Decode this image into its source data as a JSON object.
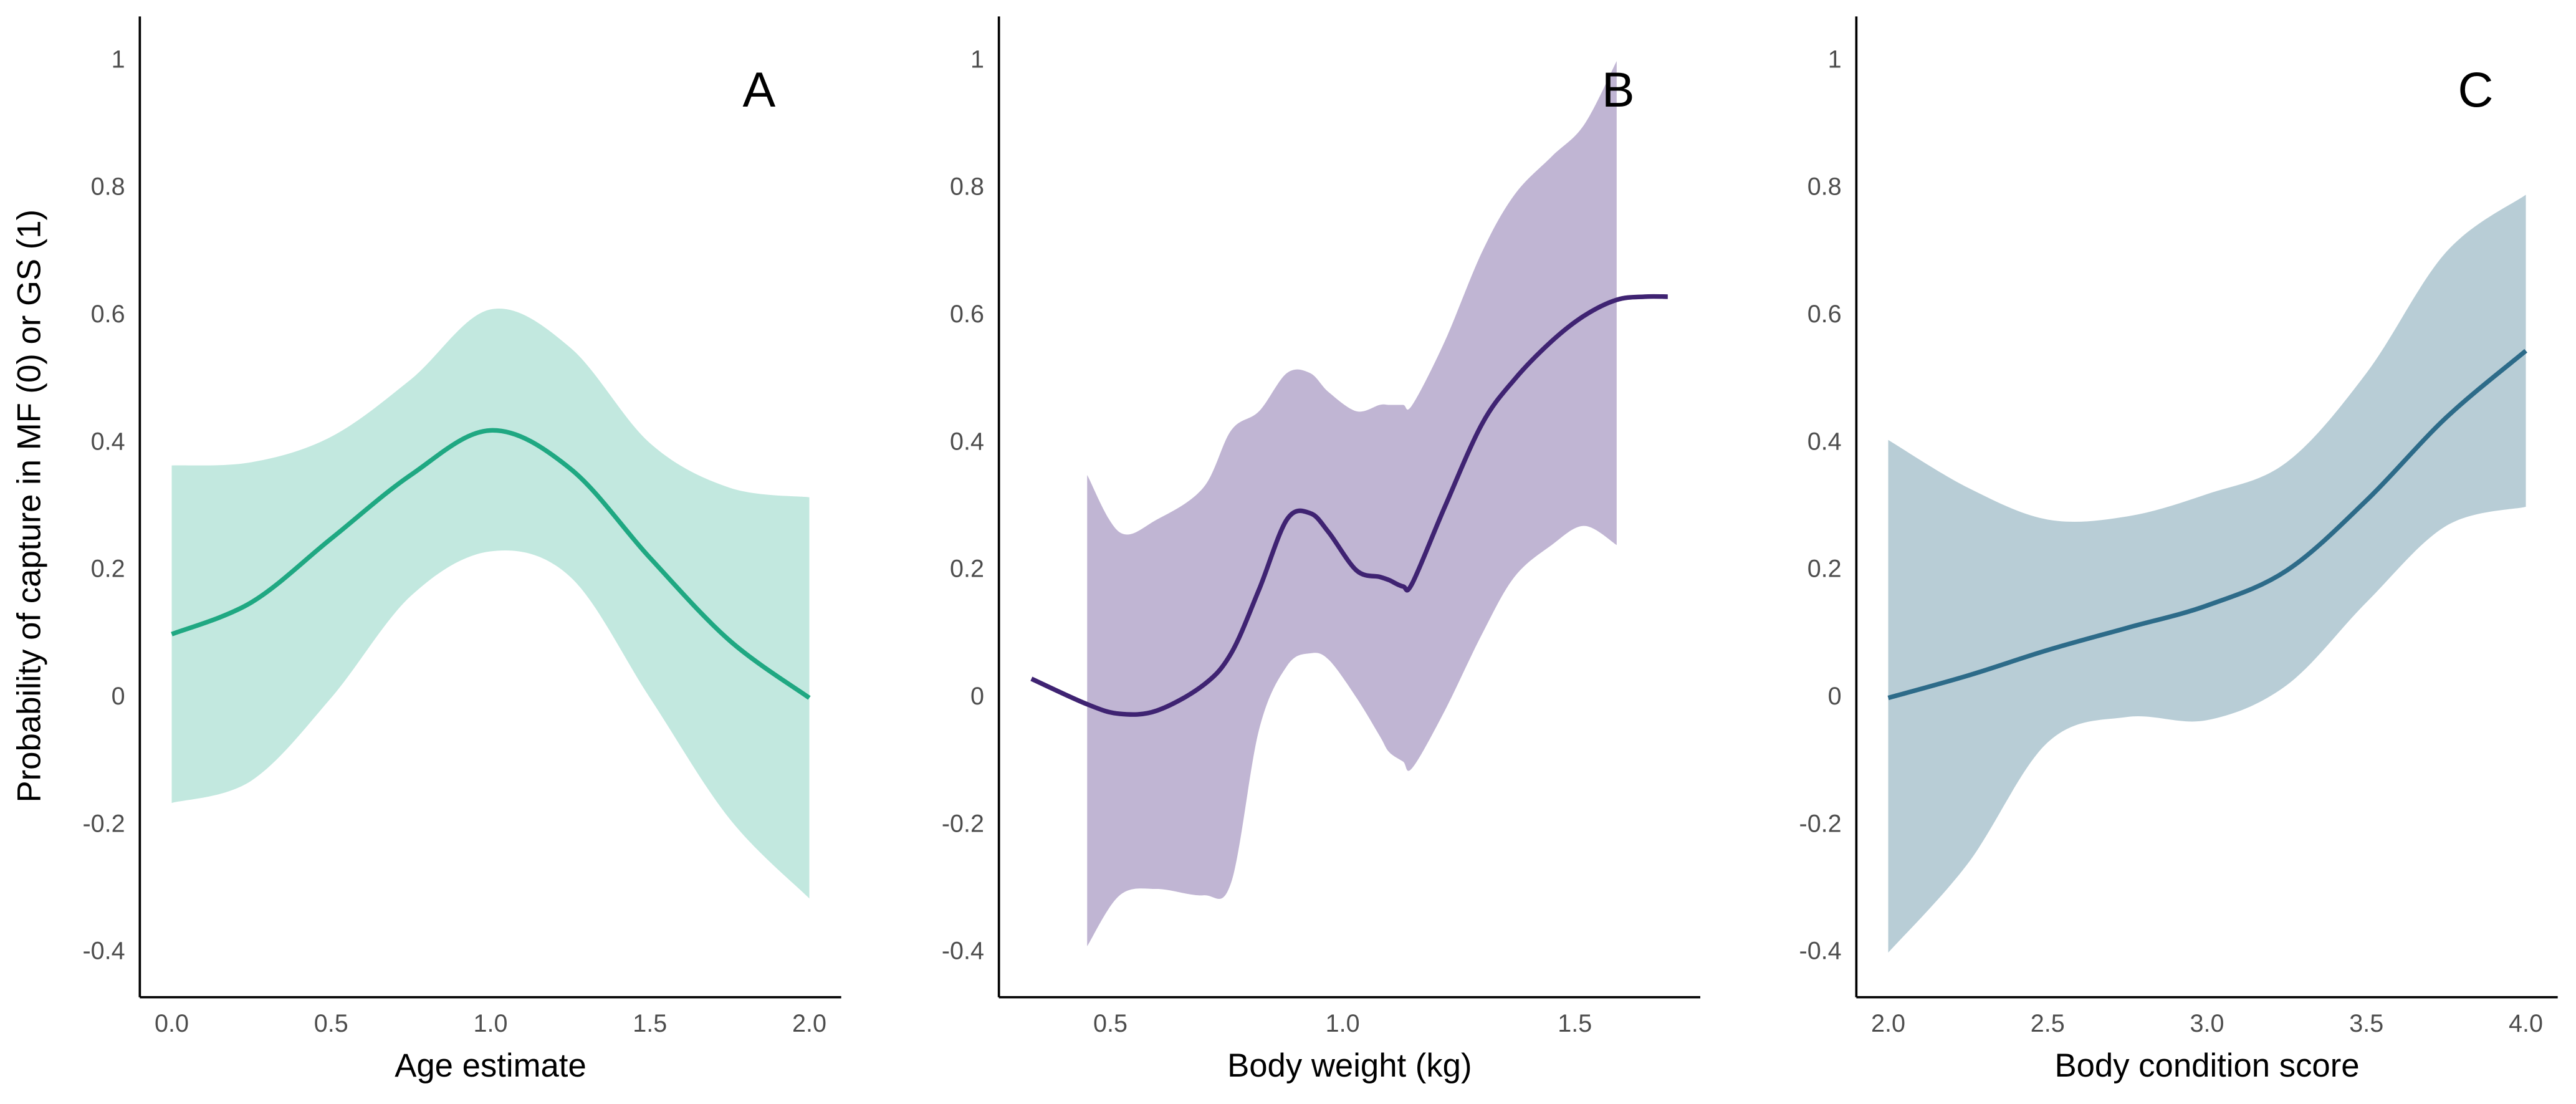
{
  "chart_data": [
    {
      "type": "line",
      "panel_label": "A",
      "xlabel": "Age estimate",
      "ylabel": "Probability of capture in MF (0) or GS (1)",
      "x": [
        0,
        0.25,
        0.5,
        0.75,
        1.0,
        1.25,
        1.5,
        1.75,
        2.0
      ],
      "line": {
        "color": "#1fa882",
        "values": [
          0.1,
          0.15,
          0.25,
          0.35,
          0.42,
          0.36,
          0.22,
          0.09,
          0.0
        ]
      },
      "band": {
        "color": "#c2e8df",
        "upper": [
          0.365,
          0.37,
          0.41,
          0.5,
          0.61,
          0.55,
          0.4,
          0.33,
          0.315
        ],
        "lower": [
          -0.165,
          -0.13,
          0.0,
          0.16,
          0.23,
          0.19,
          0.0,
          -0.19,
          -0.315
        ]
      },
      "xlim": [
        -0.1,
        2.1
      ],
      "xticks": [
        {
          "value": 0,
          "label": "0.0"
        },
        0.5,
        {
          "value": 1,
          "label": "1.0"
        },
        1.5,
        {
          "value": 2,
          "label": "2.0"
        }
      ],
      "ylim": [
        -0.47,
        1.07
      ],
      "yticks": [
        -0.4,
        -0.2,
        0,
        0.2,
        0.4,
        0.6,
        0.8,
        1
      ]
    },
    {
      "type": "line",
      "panel_label": "B",
      "xlabel": "Body weight (kg)",
      "x": [
        0.33,
        0.45,
        0.52,
        0.6,
        0.7,
        0.76,
        0.82,
        0.88,
        0.93,
        0.97,
        1.03,
        1.08,
        1.1,
        1.13,
        1.15,
        1.22,
        1.3,
        1.37,
        1.45,
        1.52,
        1.59,
        1.65,
        1.7
      ],
      "line": {
        "color": "#3f2372",
        "values": [
          0.03,
          -0.01,
          -0.025,
          -0.02,
          0.02,
          0.07,
          0.17,
          0.28,
          0.29,
          0.26,
          0.2,
          0.19,
          0.185,
          0.175,
          0.18,
          0.3,
          0.43,
          0.5,
          0.56,
          0.6,
          0.625,
          0.63,
          0.63
        ]
      },
      "band": {
        "color": "#c0b5d3",
        "upper": [
          null,
          0.35,
          0.26,
          0.28,
          0.33,
          0.42,
          0.45,
          0.51,
          0.51,
          0.48,
          0.45,
          0.46,
          0.46,
          0.46,
          0.46,
          0.56,
          0.7,
          0.79,
          0.85,
          0.9,
          1.0,
          null,
          null
        ],
        "lower": [
          null,
          -0.39,
          -0.31,
          -0.3,
          -0.31,
          -0.29,
          -0.05,
          0.05,
          0.07,
          0.06,
          0.0,
          -0.06,
          -0.085,
          -0.1,
          -0.11,
          -0.02,
          0.1,
          0.19,
          0.24,
          0.27,
          0.24,
          null,
          null
        ]
      },
      "xlim": [
        0.26,
        1.77
      ],
      "xticks": [
        0.5,
        {
          "value": 1,
          "label": "1.0"
        },
        1.5
      ],
      "ylim": [
        -0.47,
        1.07
      ],
      "yticks": [
        -0.4,
        -0.2,
        0,
        0.2,
        0.4,
        0.6,
        0.8,
        1
      ]
    },
    {
      "type": "line",
      "panel_label": "C",
      "xlabel": "Body condition score",
      "x": [
        2.0,
        2.25,
        2.5,
        2.75,
        3.0,
        3.25,
        3.5,
        3.75,
        4.0
      ],
      "line": {
        "color": "#2d6b89",
        "values": [
          0,
          0.035,
          0.075,
          0.11,
          0.145,
          0.2,
          0.31,
          0.44,
          0.545
        ]
      },
      "band": {
        "color": "#b8cdd6",
        "upper": [
          0.405,
          0.33,
          0.28,
          0.285,
          0.32,
          0.37,
          0.51,
          0.7,
          0.79
        ],
        "lower": [
          -0.4,
          -0.26,
          -0.07,
          -0.03,
          -0.035,
          0.02,
          0.15,
          0.27,
          0.3
        ]
      },
      "xlim": [
        1.9,
        4.1
      ],
      "xticks": [
        {
          "value": 2,
          "label": "2.0"
        },
        2.5,
        {
          "value": 3,
          "label": "3.0"
        },
        3.5,
        {
          "value": 4,
          "label": "4.0"
        }
      ],
      "ylim": [
        -0.47,
        1.07
      ],
      "yticks": [
        -0.4,
        -0.2,
        0,
        0.2,
        0.4,
        0.6,
        0.8,
        1
      ]
    }
  ]
}
